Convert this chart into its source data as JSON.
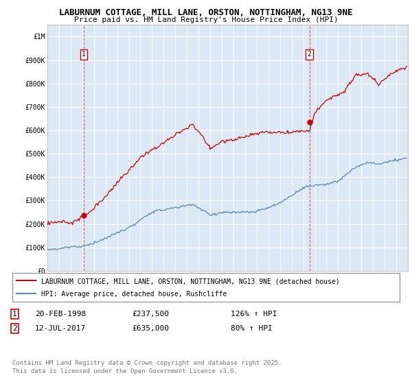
{
  "title_line1": "LABURNUM COTTAGE, MILL LANE, ORSTON, NOTTINGHAM, NG13 9NE",
  "title_line2": "Price paid vs. HM Land Registry's House Price Index (HPI)",
  "legend_label1": "LABURNUM COTTAGE, MILL LANE, ORSTON, NOTTINGHAM, NG13 9NE (detached house)",
  "legend_label2": "HPI: Average price, detached house, Rushcliffe",
  "annotation1_date": "20-FEB-1998",
  "annotation1_price": "£237,500",
  "annotation1_hpi": "126% ↑ HPI",
  "annotation2_date": "12-JUL-2017",
  "annotation2_price": "£635,000",
  "annotation2_hpi": "80% ↑ HPI",
  "footer": "Contains HM Land Registry data © Crown copyright and database right 2025.\nThis data is licensed under the Open Government Licence v3.0.",
  "xlim_start": 1995,
  "xlim_end": 2026,
  "ylim_min": 0,
  "ylim_max": 1050000,
  "yticks": [
    0,
    100000,
    200000,
    300000,
    400000,
    500000,
    600000,
    700000,
    800000,
    900000,
    1000000
  ],
  "ytick_labels": [
    "£0",
    "£100K",
    "£200K",
    "£300K",
    "£400K",
    "£500K",
    "£600K",
    "£700K",
    "£800K",
    "£900K",
    "£1M"
  ],
  "sale1_x": 1998.13,
  "sale1_y": 237500,
  "sale2_x": 2017.54,
  "sale2_y": 635000,
  "line1_color": "#cc0000",
  "line2_color": "#5588bb",
  "chart_bg_color": "#dde8f5",
  "background_color": "#ffffff",
  "grid_color": "#ffffff",
  "title_fontsize": 9,
  "subtitle_fontsize": 8,
  "tick_fontsize": 7,
  "legend_fontsize": 7,
  "annot_fontsize": 8,
  "footer_fontsize": 6.5
}
